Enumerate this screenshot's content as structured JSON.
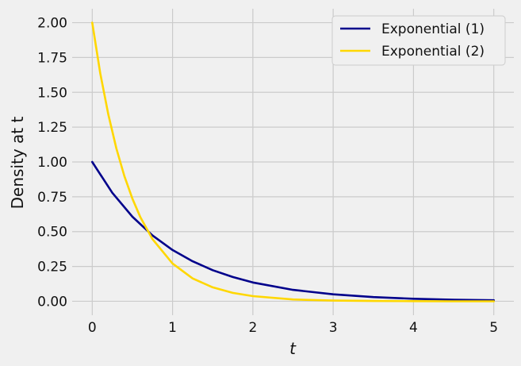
{
  "chart_data": {
    "type": "line",
    "xlabel": "t",
    "ylabel": "Density at t",
    "xlim": [
      -0.25,
      5.25
    ],
    "ylim": [
      -0.1,
      2.1
    ],
    "x_ticks": [
      0,
      1,
      2,
      3,
      4,
      5
    ],
    "y_ticks": [
      0.0,
      0.25,
      0.5,
      0.75,
      1.0,
      1.25,
      1.5,
      1.75,
      2.0
    ],
    "grid": true,
    "legend_placement": "top-right",
    "series": [
      {
        "name": "Exponential (1)",
        "color": "#00008b",
        "x": [
          0,
          0.25,
          0.5,
          0.75,
          1,
          1.25,
          1.5,
          1.75,
          2,
          2.5,
          3,
          3.5,
          4,
          4.5,
          5
        ],
        "y": [
          1.0,
          0.779,
          0.607,
          0.472,
          0.368,
          0.287,
          0.223,
          0.174,
          0.135,
          0.082,
          0.05,
          0.03,
          0.018,
          0.011,
          0.007
        ]
      },
      {
        "name": "Exponential (2)",
        "color": "#ffd700",
        "x": [
          0,
          0.1,
          0.2,
          0.3,
          0.4,
          0.5,
          0.6,
          0.75,
          1,
          1.25,
          1.5,
          1.75,
          2,
          2.5,
          3,
          3.5,
          4,
          4.5,
          5
        ],
        "y": [
          2.0,
          1.637,
          1.341,
          1.098,
          0.899,
          0.736,
          0.602,
          0.446,
          0.271,
          0.164,
          0.1,
          0.06,
          0.037,
          0.013,
          0.005,
          0.002,
          0.001,
          0.0,
          0.0
        ]
      }
    ]
  }
}
